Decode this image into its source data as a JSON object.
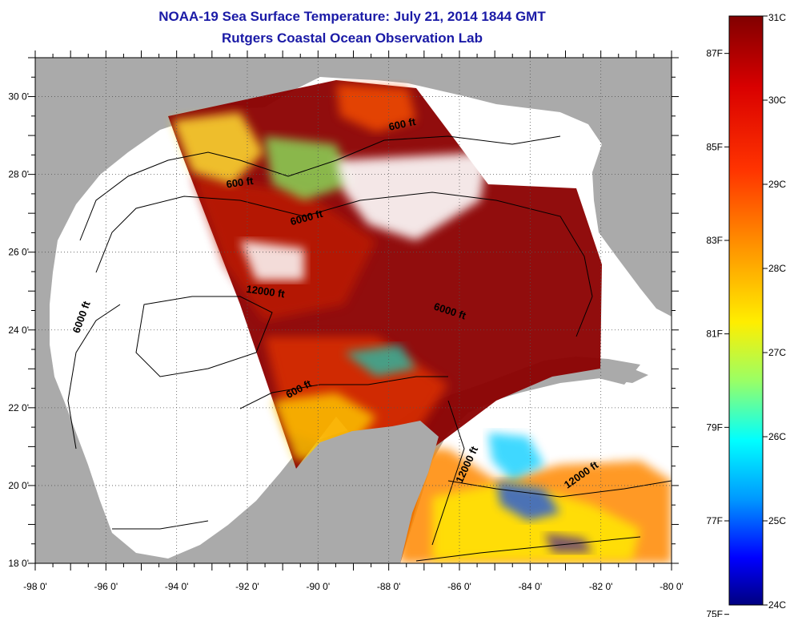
{
  "title": {
    "line1": "NOAA-19 Sea Surface Temperature:  July 21, 2014 1844 GMT",
    "line2": "Rutgers Coastal Ocean Observation Lab"
  },
  "map": {
    "lon_range": [
      -98,
      -80
    ],
    "lat_range": [
      18,
      31
    ],
    "x_ticks": [
      "-98 0'",
      "-96 0'",
      "-94 0'",
      "-92 0'",
      "-90 0'",
      "-88 0'",
      "-86 0'",
      "-84 0'",
      "-82 0'",
      "-80 0'"
    ],
    "y_ticks": [
      "30 0'",
      "28 0'",
      "26 0'",
      "24 0'",
      "22 0'",
      "20 0'",
      "18 0'"
    ],
    "grid": "dotted",
    "colors": {
      "land": "#aaaaaa",
      "no_data": "#ffffff",
      "warm": "#8b0000"
    },
    "contour_labels": [
      {
        "text": "600 ft",
        "lon": -92.2,
        "lat": 27.7
      },
      {
        "text": "6000 ft",
        "lon": -90.3,
        "lat": 26.8
      },
      {
        "text": "12000 ft",
        "lon": -91.5,
        "lat": 24.9
      },
      {
        "text": "6000 ft",
        "lon": -96.6,
        "lat": 24.3
      },
      {
        "text": "6000 ft",
        "lon": -86.3,
        "lat": 24.4
      },
      {
        "text": "600 ft",
        "lon": -90.5,
        "lat": 22.4
      },
      {
        "text": "600 ft",
        "lon": -87.6,
        "lat": 29.2
      },
      {
        "text": "12000 ft",
        "lon": -85.7,
        "lat": 20.5
      },
      {
        "text": "12000 ft",
        "lon": -82.5,
        "lat": 20.2
      }
    ]
  },
  "colorbar": {
    "celsius_range": [
      24,
      31
    ],
    "celsius_labels": [
      "31C",
      "30C",
      "29C",
      "28C",
      "27C",
      "26C",
      "25C",
      "24C"
    ],
    "fahrenheit_labels": [
      "87F",
      "85F",
      "83F",
      "81F",
      "79F",
      "77F",
      "75F"
    ]
  }
}
